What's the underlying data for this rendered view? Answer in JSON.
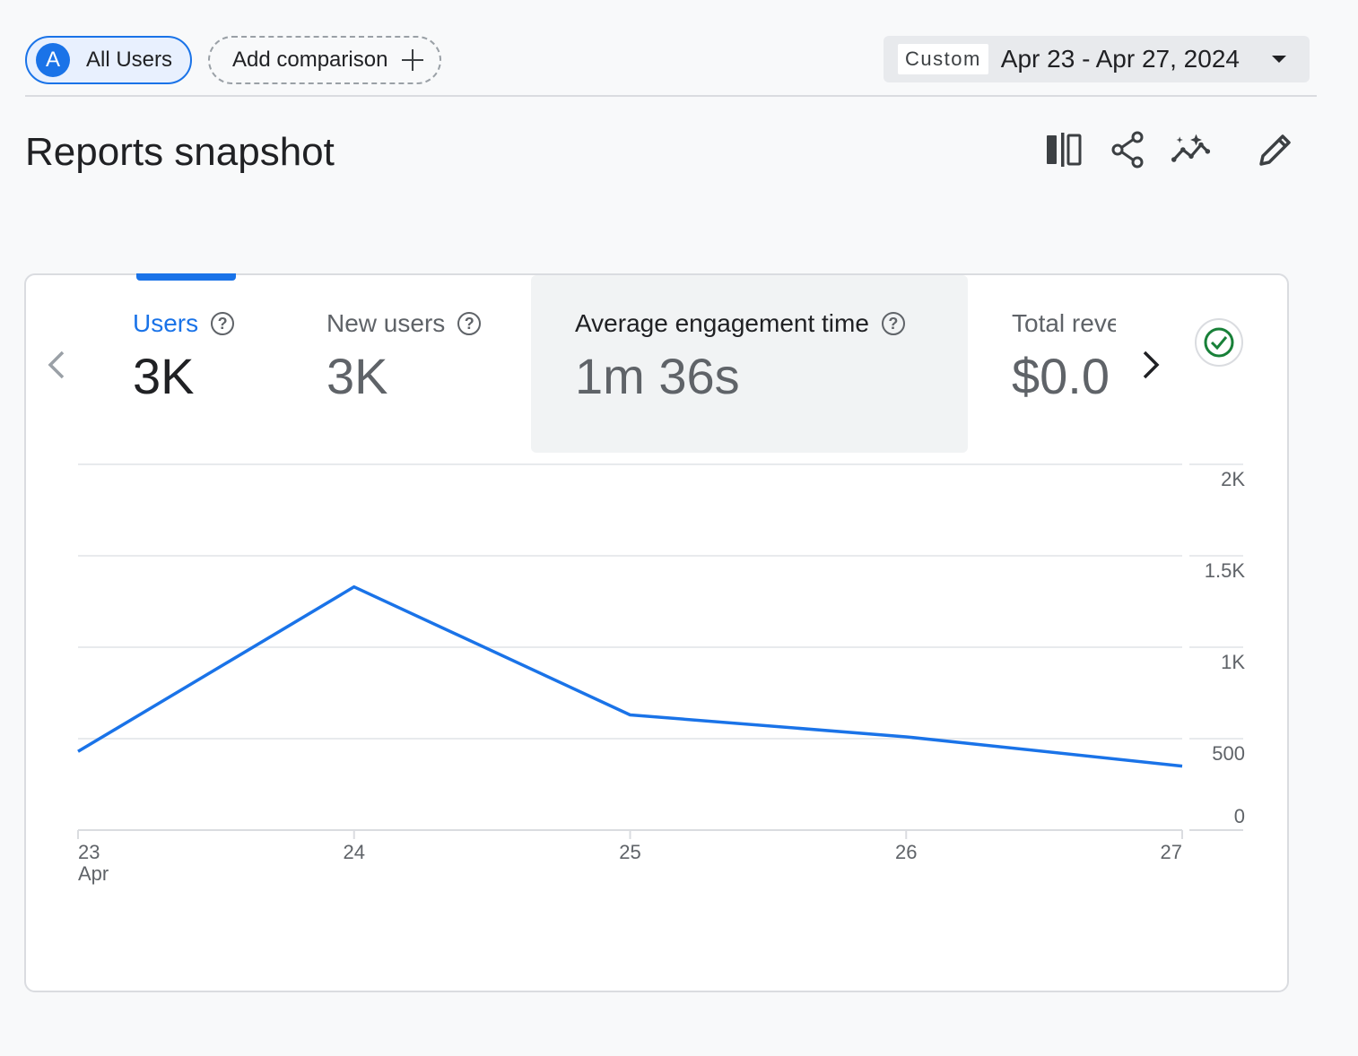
{
  "segment": {
    "avatar": "A",
    "label": "All Users"
  },
  "comparison": {
    "label": "Add comparison"
  },
  "date_picker": {
    "tag": "Custom",
    "range": "Apr 23 - Apr 27, 2024"
  },
  "page": {
    "title": "Reports snapshot"
  },
  "toolbar_icons": [
    "compare-columns-icon",
    "share-icon",
    "insights-icon",
    "edit-icon"
  ],
  "metrics": [
    {
      "label": "Users",
      "value": "3K",
      "active": true
    },
    {
      "label": "New users",
      "value": "3K"
    },
    {
      "label": "Average engagement time",
      "value": "1m 36s"
    },
    {
      "label": "Total reve",
      "value": "$0.0"
    }
  ],
  "help_glyph": "?",
  "colors": {
    "accent": "#1a73e8",
    "check": "#188038",
    "grid": "#e8eaed"
  },
  "chart_data": {
    "type": "line",
    "x": [
      "23",
      "24",
      "25",
      "26",
      "27"
    ],
    "x_sublabel": "Apr",
    "series": [
      {
        "values": [
          430,
          1330,
          630,
          510,
          350
        ]
      }
    ],
    "yticks": [
      "0",
      "500",
      "1K",
      "1.5K",
      "2K"
    ],
    "ylim": [
      0,
      2000
    ],
    "grid": true
  }
}
